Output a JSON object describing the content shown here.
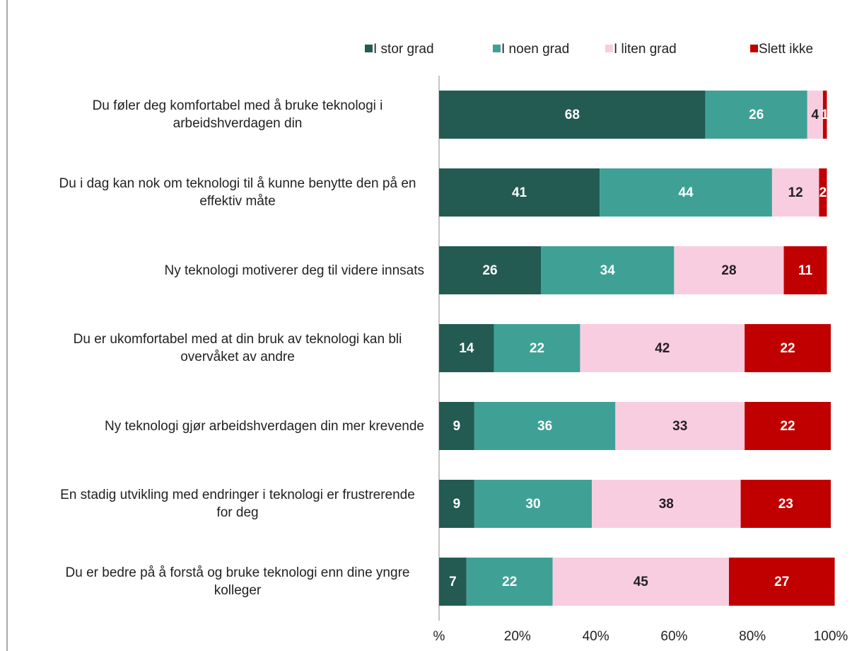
{
  "chart_data": {
    "type": "stacked-bar-horizontal",
    "categories": [
      "Du føler deg komfortabel med å bruke teknologi i arbeidshverdagen din",
      "Du i dag kan nok om teknologi til å kunne benytte den på en effektiv måte",
      "Ny teknologi motiverer deg til videre innsats",
      "Du er ukomfortabel med at din bruk av teknologi kan bli overvåket av andre",
      "Ny teknologi gjør arbeidshverdagen din mer krevende",
      "En stadig utvikling med endringer i teknologi er frustrerende for deg",
      "Du er bedre på å forstå og bruke teknologi enn dine yngre kolleger"
    ],
    "series": [
      {
        "name": "I stor grad",
        "color": "#235a52",
        "values": [
          68,
          41,
          26,
          14,
          9,
          9,
          7
        ]
      },
      {
        "name": "I noen grad",
        "color": "#3fa196",
        "values": [
          26,
          44,
          34,
          22,
          36,
          30,
          22
        ]
      },
      {
        "name": "I liten grad",
        "color": "#f9cde0",
        "values": [
          4,
          12,
          28,
          42,
          33,
          38,
          45
        ]
      },
      {
        "name": "Slett ikke",
        "color": "#c00000",
        "values": [
          1,
          2,
          11,
          22,
          22,
          23,
          27
        ]
      }
    ],
    "xlim": [
      0,
      100
    ],
    "xticks": [
      {
        "value": 0,
        "label": "%"
      },
      {
        "value": 20,
        "label": "20%"
      },
      {
        "value": 40,
        "label": "40%"
      },
      {
        "value": 60,
        "label": "60%"
      },
      {
        "value": 80,
        "label": "80%"
      },
      {
        "value": 100,
        "label": "100%"
      }
    ],
    "legend": "top"
  }
}
